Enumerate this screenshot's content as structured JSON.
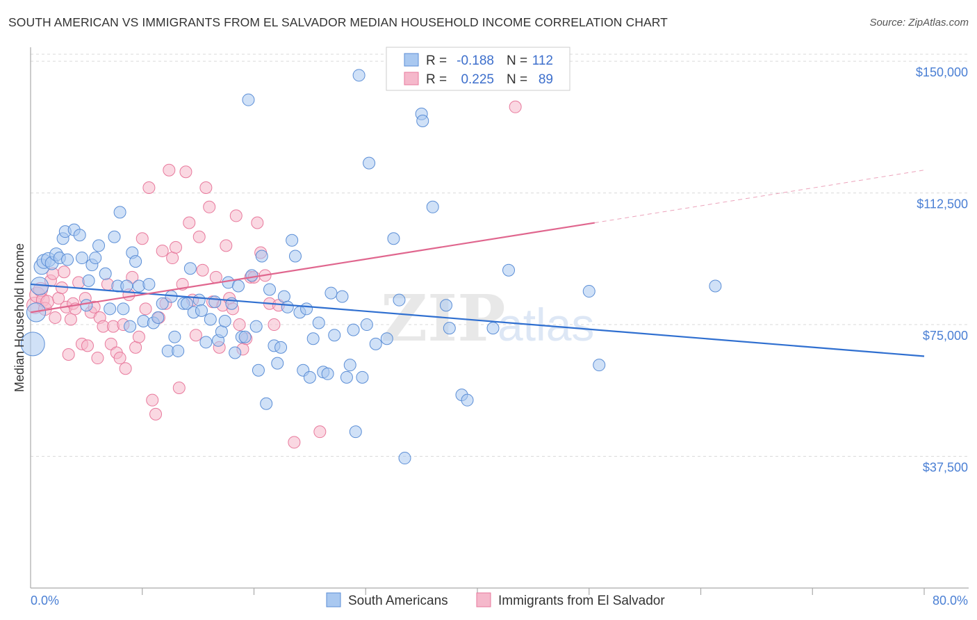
{
  "title": "SOUTH AMERICAN VS IMMIGRANTS FROM EL SALVADOR MEDIAN HOUSEHOLD INCOME CORRELATION CHART",
  "source": "Source: ZipAtlas.com",
  "watermark": {
    "zip": "ZIP",
    "atlas": "atlas"
  },
  "colors": {
    "blue_fill": "#a9c8f0",
    "blue_stroke": "#5b8ed6",
    "blue_line": "#2f6fd0",
    "pink_fill": "#f5b8cb",
    "pink_stroke": "#e8799c",
    "pink_line": "#e0668e",
    "axis_label": "#4a7fd4",
    "grid": "#d9d9d9"
  },
  "legend": {
    "r_label": "R =",
    "n_label": "N =",
    "series": [
      {
        "r": "-0.188",
        "n": "112"
      },
      {
        "r": "0.225",
        "n": "89"
      }
    ]
  },
  "bottom_legend": [
    "South Americans",
    "Immigrants from El Salvador"
  ],
  "chart_data": {
    "type": "scatter",
    "title": "SOUTH AMERICAN VS IMMIGRANTS FROM EL SALVADOR MEDIAN HOUSEHOLD INCOME CORRELATION CHART",
    "xlabel": "",
    "ylabel": "Median Household Income",
    "xlim": [
      0,
      80
    ],
    "ylim": [
      0,
      152000
    ],
    "x_tick_labels": [
      "0.0%",
      "80.0%"
    ],
    "y_ticks": [
      37500,
      75000,
      112500,
      150000
    ],
    "y_tick_labels": [
      "$37,500",
      "$75,000",
      "$112,500",
      "$150,000"
    ],
    "grid": true,
    "legend_position": "top-center",
    "series": [
      {
        "name": "South Americans",
        "r": -0.188,
        "n": 112,
        "trend": {
          "x": [
            0,
            80
          ],
          "y": [
            86500,
            66000
          ]
        },
        "points": [
          [
            0.2,
            69500,
            2.0
          ],
          [
            0.5,
            78500,
            1.6
          ],
          [
            0.8,
            86000,
            1.5
          ],
          [
            1.0,
            91500,
            1.3
          ],
          [
            1.2,
            93000,
            1.2
          ],
          [
            1.6,
            93500,
            1.2
          ],
          [
            1.9,
            92500,
            1.1
          ],
          [
            2.3,
            95000,
            1.1
          ],
          [
            2.6,
            94000,
            1.0
          ],
          [
            2.9,
            99500,
            1.0
          ],
          [
            3.1,
            101500,
            1.0
          ],
          [
            3.3,
            93500,
            1.0
          ],
          [
            3.9,
            102000,
            1.0
          ],
          [
            4.4,
            100500,
            1.0
          ],
          [
            4.6,
            94000,
            1.0
          ],
          [
            5.0,
            80500,
            1.0
          ],
          [
            5.2,
            87500,
            1.0
          ],
          [
            5.5,
            92000,
            1.0
          ],
          [
            5.8,
            94000,
            1.0
          ],
          [
            6.1,
            97500,
            1.0
          ],
          [
            6.7,
            89500,
            1.0
          ],
          [
            7.1,
            79500,
            1.0
          ],
          [
            7.5,
            100000,
            1.0
          ],
          [
            7.8,
            86000,
            1.0
          ],
          [
            8.0,
            107000,
            1.0
          ],
          [
            8.3,
            79500,
            1.0
          ],
          [
            8.6,
            86000,
            1.0
          ],
          [
            8.9,
            74500,
            1.0
          ],
          [
            9.1,
            95500,
            1.0
          ],
          [
            9.4,
            93000,
            1.0
          ],
          [
            9.7,
            86000,
            1.0
          ],
          [
            10.1,
            76000,
            1.0
          ],
          [
            10.6,
            86500,
            1.0
          ],
          [
            11.0,
            75500,
            1.0
          ],
          [
            11.4,
            77000,
            1.0
          ],
          [
            11.8,
            81000,
            1.0
          ],
          [
            12.3,
            67500,
            1.0
          ],
          [
            12.6,
            83000,
            1.0
          ],
          [
            12.9,
            71500,
            1.0
          ],
          [
            13.2,
            67500,
            1.0
          ],
          [
            13.7,
            81000,
            1.0
          ],
          [
            14.0,
            81000,
            1.0
          ],
          [
            14.3,
            91000,
            1.0
          ],
          [
            14.6,
            78500,
            1.0
          ],
          [
            15.1,
            82000,
            1.0
          ],
          [
            15.3,
            79000,
            1.0
          ],
          [
            15.7,
            70000,
            1.0
          ],
          [
            16.1,
            76500,
            1.0
          ],
          [
            16.5,
            81500,
            1.0
          ],
          [
            16.8,
            70500,
            1.0
          ],
          [
            17.1,
            73000,
            1.0
          ],
          [
            17.4,
            76000,
            1.0
          ],
          [
            17.7,
            87000,
            1.0
          ],
          [
            18.0,
            81000,
            1.0
          ],
          [
            18.3,
            67000,
            1.0
          ],
          [
            18.6,
            86000,
            1.0
          ],
          [
            18.9,
            71500,
            1.0
          ],
          [
            19.2,
            71500,
            1.0
          ],
          [
            19.5,
            139000,
            1.0
          ],
          [
            19.8,
            89000,
            1.0
          ],
          [
            20.2,
            74500,
            1.0
          ],
          [
            20.4,
            62000,
            1.0
          ],
          [
            20.7,
            94500,
            1.0
          ],
          [
            21.1,
            52500,
            1.0
          ],
          [
            21.4,
            85000,
            1.0
          ],
          [
            21.8,
            69000,
            1.0
          ],
          [
            22.1,
            64000,
            1.0
          ],
          [
            22.4,
            68500,
            1.0
          ],
          [
            22.7,
            83000,
            1.0
          ],
          [
            23.0,
            80000,
            1.0
          ],
          [
            23.4,
            99000,
            1.0
          ],
          [
            23.7,
            94500,
            1.0
          ],
          [
            24.1,
            78500,
            1.0
          ],
          [
            24.4,
            62000,
            1.0
          ],
          [
            24.7,
            79500,
            1.0
          ],
          [
            25.0,
            60000,
            1.0
          ],
          [
            25.3,
            71000,
            1.0
          ],
          [
            25.8,
            75500,
            1.0
          ],
          [
            26.2,
            61500,
            1.0
          ],
          [
            26.6,
            61000,
            1.0
          ],
          [
            26.9,
            84000,
            1.0
          ],
          [
            27.2,
            72000,
            1.0
          ],
          [
            27.9,
            83000,
            1.0
          ],
          [
            28.3,
            60000,
            1.0
          ],
          [
            28.6,
            63500,
            1.0
          ],
          [
            28.9,
            73500,
            1.0
          ],
          [
            29.1,
            44500,
            1.0
          ],
          [
            29.4,
            146000,
            1.0
          ],
          [
            29.7,
            60000,
            1.0
          ],
          [
            30.1,
            75000,
            1.0
          ],
          [
            30.3,
            121000,
            1.0
          ],
          [
            30.9,
            69500,
            1.0
          ],
          [
            31.9,
            71000,
            1.0
          ],
          [
            32.5,
            99500,
            1.0
          ],
          [
            33.0,
            82000,
            1.0
          ],
          [
            33.5,
            37000,
            1.0
          ],
          [
            35.0,
            135000,
            1.0
          ],
          [
            35.1,
            133000,
            1.0
          ],
          [
            36.0,
            108500,
            1.0
          ],
          [
            37.2,
            80500,
            1.0
          ],
          [
            37.5,
            74000,
            1.0
          ],
          [
            38.6,
            55000,
            1.0
          ],
          [
            39.1,
            53500,
            1.0
          ],
          [
            41.4,
            74000,
            1.0
          ],
          [
            42.8,
            90500,
            1.0
          ],
          [
            50.0,
            84500,
            1.0
          ],
          [
            50.9,
            63500,
            1.0
          ],
          [
            61.3,
            86000,
            1.0
          ]
        ]
      },
      {
        "name": "Immigrants from El Salvador",
        "r": 0.225,
        "n": 89,
        "trend": {
          "x": [
            0,
            50.5
          ],
          "y": [
            78500,
            104000
          ]
        },
        "trend_dashed": {
          "x": [
            50.5,
            80
          ],
          "y": [
            104000,
            119000
          ]
        },
        "points": [
          [
            0.4,
            80500,
            1.4
          ],
          [
            0.6,
            83500,
            1.3
          ],
          [
            0.9,
            85000,
            1.2
          ],
          [
            1.1,
            82000,
            1.1
          ],
          [
            1.3,
            79500,
            1.1
          ],
          [
            1.5,
            81500,
            1.1
          ],
          [
            1.8,
            87500,
            1.0
          ],
          [
            2.0,
            89500,
            1.0
          ],
          [
            2.2,
            77000,
            1.0
          ],
          [
            2.5,
            82500,
            1.0
          ],
          [
            2.8,
            85500,
            1.0
          ],
          [
            3.0,
            90000,
            1.0
          ],
          [
            3.2,
            80000,
            1.0
          ],
          [
            3.4,
            66500,
            1.0
          ],
          [
            3.6,
            76500,
            1.0
          ],
          [
            3.8,
            81000,
            1.0
          ],
          [
            4.0,
            79500,
            1.0
          ],
          [
            4.3,
            87000,
            1.0
          ],
          [
            4.6,
            69500,
            1.0
          ],
          [
            4.9,
            82500,
            1.0
          ],
          [
            5.1,
            69000,
            1.0
          ],
          [
            5.4,
            78500,
            1.0
          ],
          [
            5.7,
            80000,
            1.0
          ],
          [
            6.0,
            65500,
            1.0
          ],
          [
            6.2,
            77000,
            1.0
          ],
          [
            6.5,
            74500,
            1.0
          ],
          [
            6.9,
            86500,
            1.0
          ],
          [
            7.2,
            69500,
            1.0
          ],
          [
            7.4,
            74500,
            1.0
          ],
          [
            7.7,
            67000,
            1.0
          ],
          [
            8.0,
            65500,
            1.0
          ],
          [
            8.3,
            75000,
            1.0
          ],
          [
            8.5,
            62500,
            1.0
          ],
          [
            8.8,
            83500,
            1.0
          ],
          [
            9.1,
            88500,
            1.0
          ],
          [
            9.4,
            68500,
            1.0
          ],
          [
            9.7,
            71500,
            1.0
          ],
          [
            10.0,
            99500,
            1.0
          ],
          [
            10.3,
            79500,
            1.0
          ],
          [
            10.6,
            114000,
            1.0
          ],
          [
            10.9,
            53500,
            1.0
          ],
          [
            11.2,
            49500,
            1.0
          ],
          [
            11.5,
            77000,
            1.0
          ],
          [
            11.8,
            96000,
            1.0
          ],
          [
            12.1,
            81000,
            1.0
          ],
          [
            12.4,
            119000,
            1.0
          ],
          [
            12.7,
            94000,
            1.0
          ],
          [
            13.0,
            97000,
            1.0
          ],
          [
            13.3,
            57000,
            1.0
          ],
          [
            13.6,
            86500,
            1.0
          ],
          [
            13.9,
            118500,
            1.0
          ],
          [
            14.2,
            104000,
            1.0
          ],
          [
            14.5,
            82000,
            1.0
          ],
          [
            14.8,
            72000,
            1.0
          ],
          [
            15.1,
            100000,
            1.0
          ],
          [
            15.4,
            90500,
            1.0
          ],
          [
            15.7,
            114000,
            1.0
          ],
          [
            16.0,
            108500,
            1.0
          ],
          [
            16.3,
            81500,
            1.0
          ],
          [
            16.6,
            88500,
            1.0
          ],
          [
            16.9,
            68500,
            1.0
          ],
          [
            17.2,
            80500,
            1.0
          ],
          [
            17.5,
            97500,
            1.0
          ],
          [
            17.8,
            82500,
            1.0
          ],
          [
            18.1,
            79500,
            1.0
          ],
          [
            18.4,
            106000,
            1.0
          ],
          [
            18.7,
            75000,
            1.0
          ],
          [
            19.0,
            68000,
            1.0
          ],
          [
            19.3,
            71000,
            1.0
          ],
          [
            19.7,
            88500,
            1.0
          ],
          [
            20.0,
            88500,
            1.0
          ],
          [
            20.3,
            104000,
            1.0
          ],
          [
            20.6,
            95500,
            1.0
          ],
          [
            21.0,
            89000,
            1.0
          ],
          [
            21.4,
            81000,
            1.0
          ],
          [
            21.8,
            75000,
            1.0
          ],
          [
            22.2,
            80500,
            1.0
          ],
          [
            23.6,
            41500,
            1.0
          ],
          [
            25.9,
            44500,
            1.0
          ],
          [
            43.4,
            137000,
            1.0
          ]
        ]
      }
    ]
  }
}
